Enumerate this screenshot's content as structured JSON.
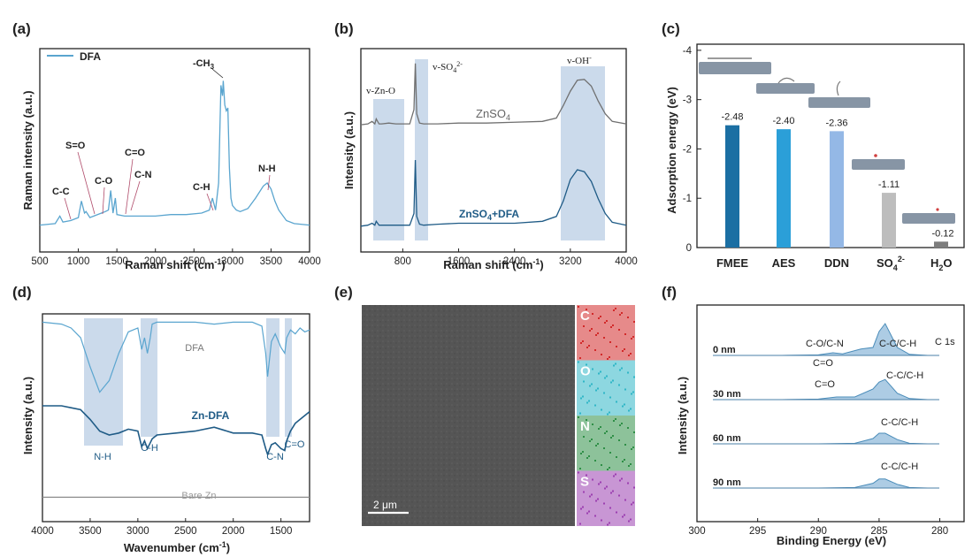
{
  "figure": {
    "a": {
      "panel_label": "(a)",
      "legend": "DFA",
      "xlabel": "Raman shift (cm",
      "xlabel_sup": "-1",
      "xlabel_tail": ")",
      "ylabel": "Raman intensity (a.u.)",
      "peaks": {
        "ch3": "-CH",
        "ch3_sub": "3",
        "so": "S=O",
        "co_dbl": "C=O",
        "co": "C-O",
        "cn": "C-N",
        "cc": "C-C",
        "ch": "C-H",
        "nh": "N-H"
      }
    },
    "b": {
      "panel_label": "(b)",
      "xlabel": "Raman shift (cm",
      "xlabel_sup": "-1",
      "xlabel_tail": ")",
      "ylabel": "Intensity (a.u.)",
      "band1": "v-Zn-O",
      "band2": "v-SO",
      "band2_sub": "4",
      "band2_sup": "2-",
      "band3": "v-OH",
      "band3_sup": "-",
      "s1": "ZnSO",
      "s1_sub": "4",
      "s2": "ZnSO",
      "s2_sub": "4",
      "s2_tail": "+DFA"
    },
    "c": {
      "panel_label": "(c)",
      "ylabel": "Adsorption energy (eV)",
      "c_cat3": "DDN",
      "c_cat4": "SO",
      "c_cat4_sub": "4",
      "c_cat4_sup": "2-",
      "c_cat5": "H",
      "c_cat5_sub": "2",
      "c_cat5_tail": "O"
    },
    "d": {
      "panel_label": "(d)",
      "xlabel": "Wavenumber (cm",
      "xlabel_sup": "-1",
      "xlabel_tail": ")",
      "ylabel": "Intensity (a.u.)",
      "s1": "DFA",
      "s2": "Zn-DFA",
      "s3": "Bare Zn",
      "bands": {
        "nh": "N-H",
        "ch": "C-H",
        "cn": "C-N",
        "co": "C=O"
      }
    },
    "e": {
      "panel_label": "(e)",
      "scalebar": "2 μm",
      "maps": [
        {
          "el": "C",
          "color": "#d22a2a"
        },
        {
          "el": "O",
          "color": "#2fb6c6"
        },
        {
          "el": "N",
          "color": "#2f8f47"
        },
        {
          "el": "S",
          "color": "#9b3fb0"
        }
      ]
    },
    "f": {
      "panel_label": "(f)",
      "xlabel": "Binding Energy (eV)",
      "ylabel": "Intensity (a.u.)",
      "title": "C 1s",
      "depths": [
        "0 nm",
        "30 nm",
        "60 nm",
        "90 nm"
      ],
      "peak_cc": "C-C/C-H",
      "peak_con": "C-O/C-N",
      "peak_codbl": "C=O"
    }
  },
  "chart_data": [
    {
      "type": "line",
      "panel": "a",
      "xlabel": "Raman shift (cm-1)",
      "ylabel": "Raman intensity (a.u.)",
      "xlim": [
        500,
        4000
      ],
      "xticks": [
        500,
        1000,
        1500,
        2000,
        2500,
        3000,
        3500,
        4000
      ],
      "series": [
        {
          "name": "DFA",
          "color": "#5aa5cf",
          "x": [
            500,
            700,
            760,
            800,
            900,
            1000,
            1040,
            1080,
            1100,
            1150,
            1200,
            1300,
            1350,
            1390,
            1420,
            1450,
            1480,
            1500,
            1600,
            1800,
            2000,
            2200,
            2400,
            2600,
            2700,
            2740,
            2780,
            2820,
            2850,
            2870,
            2880,
            2900,
            2920,
            2940,
            2960,
            2980,
            3000,
            3050,
            3100,
            3200,
            3300,
            3400,
            3450,
            3500,
            3550,
            3600,
            3700,
            3800,
            4000
          ],
          "y": [
            0.02,
            0.03,
            0.08,
            0.04,
            0.05,
            0.07,
            0.18,
            0.1,
            0.11,
            0.07,
            0.08,
            0.1,
            0.11,
            0.12,
            0.25,
            0.1,
            0.2,
            0.09,
            0.08,
            0.08,
            0.08,
            0.09,
            0.09,
            0.1,
            0.12,
            0.2,
            0.12,
            0.3,
            0.95,
            0.88,
            0.98,
            0.82,
            0.78,
            0.8,
            0.4,
            0.2,
            0.15,
            0.12,
            0.11,
            0.13,
            0.2,
            0.28,
            0.3,
            0.26,
            0.18,
            0.12,
            0.05,
            0.03,
            0.02
          ]
        }
      ]
    },
    {
      "type": "line",
      "panel": "b",
      "xlabel": "Raman shift (cm-1)",
      "ylabel": "Intensity (a.u.)",
      "xlim": [
        200,
        4000
      ],
      "xticks": [
        800,
        1600,
        2400,
        3200,
        4000
      ],
      "series": [
        {
          "name": "ZnSO4",
          "color": "#707070",
          "x": [
            200,
            300,
            360,
            400,
            420,
            460,
            500,
            600,
            700,
            800,
            900,
            960,
            980,
            1000,
            1040,
            1100,
            1300,
            1600,
            2000,
            2400,
            2800,
            3000,
            3100,
            3200,
            3300,
            3400,
            3500,
            3600,
            3700,
            3800,
            4000
          ],
          "y": [
            0.02,
            0.03,
            0.06,
            0.03,
            0.09,
            0.03,
            0.03,
            0.04,
            0.03,
            0.03,
            0.03,
            0.2,
            0.75,
            0.15,
            0.04,
            0.03,
            0.03,
            0.04,
            0.04,
            0.05,
            0.06,
            0.1,
            0.25,
            0.42,
            0.55,
            0.56,
            0.48,
            0.3,
            0.15,
            0.06,
            0.03
          ]
        },
        {
          "name": "ZnSO4+DFA",
          "color": "#1f5b86",
          "x": [
            200,
            300,
            360,
            400,
            420,
            460,
            500,
            600,
            700,
            800,
            900,
            960,
            980,
            1000,
            1040,
            1100,
            1300,
            1600,
            2000,
            2400,
            2800,
            3000,
            3100,
            3200,
            3300,
            3400,
            3500,
            3600,
            3700,
            3800,
            4000
          ],
          "y": [
            0.02,
            0.03,
            0.05,
            0.03,
            0.07,
            0.03,
            0.03,
            0.03,
            0.03,
            0.03,
            0.03,
            0.15,
            0.7,
            0.12,
            0.04,
            0.03,
            0.04,
            0.05,
            0.05,
            0.05,
            0.07,
            0.12,
            0.28,
            0.5,
            0.6,
            0.58,
            0.48,
            0.3,
            0.15,
            0.06,
            0.03
          ]
        }
      ]
    },
    {
      "type": "bar",
      "panel": "c",
      "ylabel": "Adsorption energy (eV)",
      "ylim": [
        0,
        -4
      ],
      "yticks": [
        0,
        -1,
        -2,
        -3,
        -4
      ],
      "categories": [
        "FMEE",
        "AES",
        "DDN",
        "SO4 2-",
        "H2O"
      ],
      "values": [
        -2.48,
        -2.4,
        -2.36,
        -1.11,
        -0.12
      ],
      "colors": [
        "#1b6fa3",
        "#2b9fd8",
        "#94b8e6",
        "#bdbdbd",
        "#7d7d7d"
      ]
    },
    {
      "type": "line",
      "panel": "d",
      "xlabel": "Wavenumber (cm-1)",
      "ylabel": "Intensity (a.u.)",
      "xlim": [
        4000,
        1200
      ],
      "xticks": [
        4000,
        3500,
        3000,
        2500,
        2000,
        1500
      ],
      "series": [
        {
          "name": "DFA",
          "color": "#5aa5cf",
          "x": [
            4000,
            3800,
            3700,
            3600,
            3500,
            3400,
            3300,
            3200,
            3100,
            3000,
            2960,
            2930,
            2900,
            2870,
            2850,
            2800,
            2600,
            2400,
            2200,
            2000,
            1800,
            1700,
            1660,
            1640,
            1600,
            1560,
            1500,
            1460,
            1440,
            1400,
            1350,
            1300,
            1250,
            1200
          ],
          "y": [
            0.98,
            0.97,
            0.95,
            0.9,
            0.75,
            0.62,
            0.68,
            0.82,
            0.93,
            0.95,
            0.84,
            0.9,
            0.82,
            0.9,
            0.97,
            0.98,
            0.98,
            0.98,
            0.97,
            0.98,
            0.98,
            0.96,
            0.82,
            0.7,
            0.88,
            0.92,
            0.85,
            0.82,
            0.9,
            0.94,
            0.92,
            0.95,
            0.93,
            0.94
          ]
        },
        {
          "name": "Zn-DFA",
          "color": "#1f5b86",
          "x": [
            4000,
            3800,
            3700,
            3600,
            3500,
            3400,
            3300,
            3200,
            3100,
            3000,
            2960,
            2930,
            2900,
            2870,
            2850,
            2800,
            2600,
            2400,
            2200,
            2000,
            1800,
            1700,
            1660,
            1640,
            1600,
            1560,
            1500,
            1460,
            1440,
            1400,
            1350,
            1300,
            1250,
            1200
          ],
          "y": [
            0.55,
            0.55,
            0.54,
            0.53,
            0.48,
            0.42,
            0.4,
            0.41,
            0.43,
            0.42,
            0.34,
            0.37,
            0.33,
            0.36,
            0.38,
            0.4,
            0.41,
            0.42,
            0.44,
            0.41,
            0.41,
            0.4,
            0.33,
            0.3,
            0.35,
            0.36,
            0.33,
            0.32,
            0.37,
            0.42,
            0.46,
            0.48,
            0.5,
            0.52
          ]
        },
        {
          "name": "Bare Zn",
          "color": "#8c8c8c",
          "x": [
            4000,
            1200
          ],
          "y": [
            0.08,
            0.08
          ]
        }
      ]
    },
    {
      "type": "line",
      "panel": "f",
      "title": "C 1s",
      "xlabel": "Binding Energy (eV)",
      "ylabel": "Intensity (a.u.)",
      "xlim": [
        300,
        278
      ],
      "xticks": [
        300,
        295,
        290,
        285,
        280
      ],
      "series": [
        {
          "name": "0 nm",
          "x": [
            293,
            290,
            288.8,
            288,
            286.5,
            285.5,
            285,
            284.5,
            283.5,
            282.5,
            281
          ],
          "y": [
            0.0,
            0.01,
            0.05,
            0.03,
            0.12,
            0.15,
            0.45,
            0.6,
            0.15,
            0.02,
            0.0
          ]
        },
        {
          "name": "30 nm",
          "x": [
            293,
            290,
            288.5,
            287,
            285.5,
            285,
            284.5,
            283.5,
            282.5,
            281
          ],
          "y": [
            0.0,
            0.01,
            0.05,
            0.05,
            0.2,
            0.33,
            0.38,
            0.12,
            0.02,
            0.0
          ]
        },
        {
          "name": "60 nm",
          "x": [
            293,
            290,
            287,
            285.5,
            285,
            284.5,
            283.5,
            282.5,
            281
          ],
          "y": [
            0.0,
            0.0,
            0.01,
            0.1,
            0.2,
            0.2,
            0.08,
            0.01,
            0.0
          ]
        },
        {
          "name": "90 nm",
          "x": [
            293,
            290,
            287,
            285.5,
            285,
            284.5,
            283.5,
            282.5,
            281
          ],
          "y": [
            0.0,
            0.0,
            0.01,
            0.09,
            0.17,
            0.17,
            0.07,
            0.01,
            0.0
          ]
        }
      ]
    }
  ]
}
